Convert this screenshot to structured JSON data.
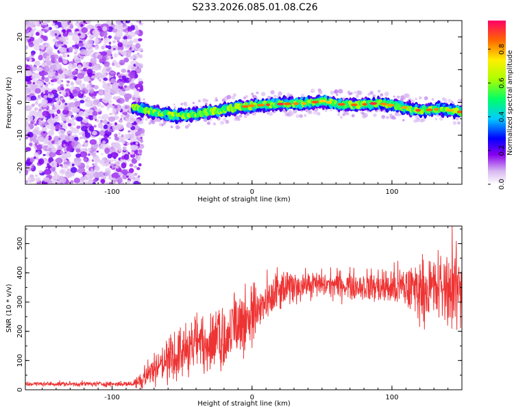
{
  "figure_title": "S233.2026.085.01.08.C26",
  "colorbar": {
    "label": "Normalized spectral amplitude",
    "ticks": [
      "0.0",
      "0.2",
      "0.4",
      "0.6",
      "0.8"
    ],
    "tick_values": [
      0.0,
      0.2,
      0.4,
      0.6,
      0.8
    ],
    "range": [
      0,
      0.97
    ]
  },
  "chart_data": [
    {
      "type": "heatmap",
      "title": "",
      "xlabel": "Height of straight line (km)",
      "ylabel": "Frequency (Hz)",
      "xlim": [
        -162,
        150
      ],
      "ylim": [
        -25,
        25
      ],
      "x_ticks": [
        -100,
        0,
        100
      ],
      "x_tick_labels": [
        "-100",
        "0",
        "100"
      ],
      "y_ticks": [
        -20,
        -10,
        0,
        10,
        20
      ],
      "y_tick_labels": [
        "-20",
        "-10",
        "0",
        "10",
        "20"
      ],
      "noise_region_x": [
        -162,
        -85
      ],
      "ridge_center_hz": [
        [
          -85,
          -1.5
        ],
        [
          -70,
          -3
        ],
        [
          -55,
          -4
        ],
        [
          -40,
          -3.5
        ],
        [
          -25,
          -2.5
        ],
        [
          -10,
          -1.5
        ],
        [
          0,
          -1
        ],
        [
          20,
          -0.5
        ],
        [
          40,
          -0.3
        ],
        [
          50,
          0.5
        ],
        [
          60,
          -0.5
        ],
        [
          75,
          -0.8
        ],
        [
          90,
          -0.2
        ],
        [
          105,
          -1.2
        ],
        [
          120,
          -2.5
        ],
        [
          135,
          -2
        ],
        [
          150,
          -3
        ]
      ],
      "ridge_halfwidth_hz": 1.8
    },
    {
      "type": "line",
      "title": "",
      "xlabel": "Height of straight line (km)",
      "ylabel": "SNR (10 * v/v)",
      "xlim": [
        -162,
        150
      ],
      "ylim": [
        0,
        560
      ],
      "x_ticks": [
        -100,
        0,
        100
      ],
      "x_tick_labels": [
        "-100",
        "0",
        "100"
      ],
      "y_ticks": [
        0,
        100,
        200,
        300,
        400,
        500
      ],
      "y_tick_labels": [
        "0",
        "100",
        "200",
        "300",
        "400",
        "500"
      ],
      "color": "#ee3333",
      "trend": [
        [
          -162,
          20
        ],
        [
          -85,
          20
        ],
        [
          -78,
          40
        ],
        [
          -70,
          75
        ],
        [
          -55,
          110
        ],
        [
          -40,
          155
        ],
        [
          -20,
          170
        ],
        [
          -10,
          220
        ],
        [
          0,
          255
        ],
        [
          10,
          290
        ],
        [
          20,
          335
        ],
        [
          30,
          355
        ],
        [
          40,
          360
        ],
        [
          60,
          360
        ],
        [
          80,
          355
        ],
        [
          100,
          350
        ],
        [
          120,
          345
        ],
        [
          140,
          345
        ],
        [
          150,
          345
        ]
      ],
      "noise_amplitude": [
        [
          -162,
          5
        ],
        [
          -85,
          6
        ],
        [
          -78,
          30
        ],
        [
          -60,
          50
        ],
        [
          -30,
          70
        ],
        [
          0,
          75
        ],
        [
          20,
          45
        ],
        [
          40,
          30
        ],
        [
          80,
          35
        ],
        [
          110,
          55
        ],
        [
          130,
          80
        ],
        [
          150,
          95
        ]
      ],
      "approx_peak": {
        "x": 143,
        "y": 560
      }
    }
  ]
}
